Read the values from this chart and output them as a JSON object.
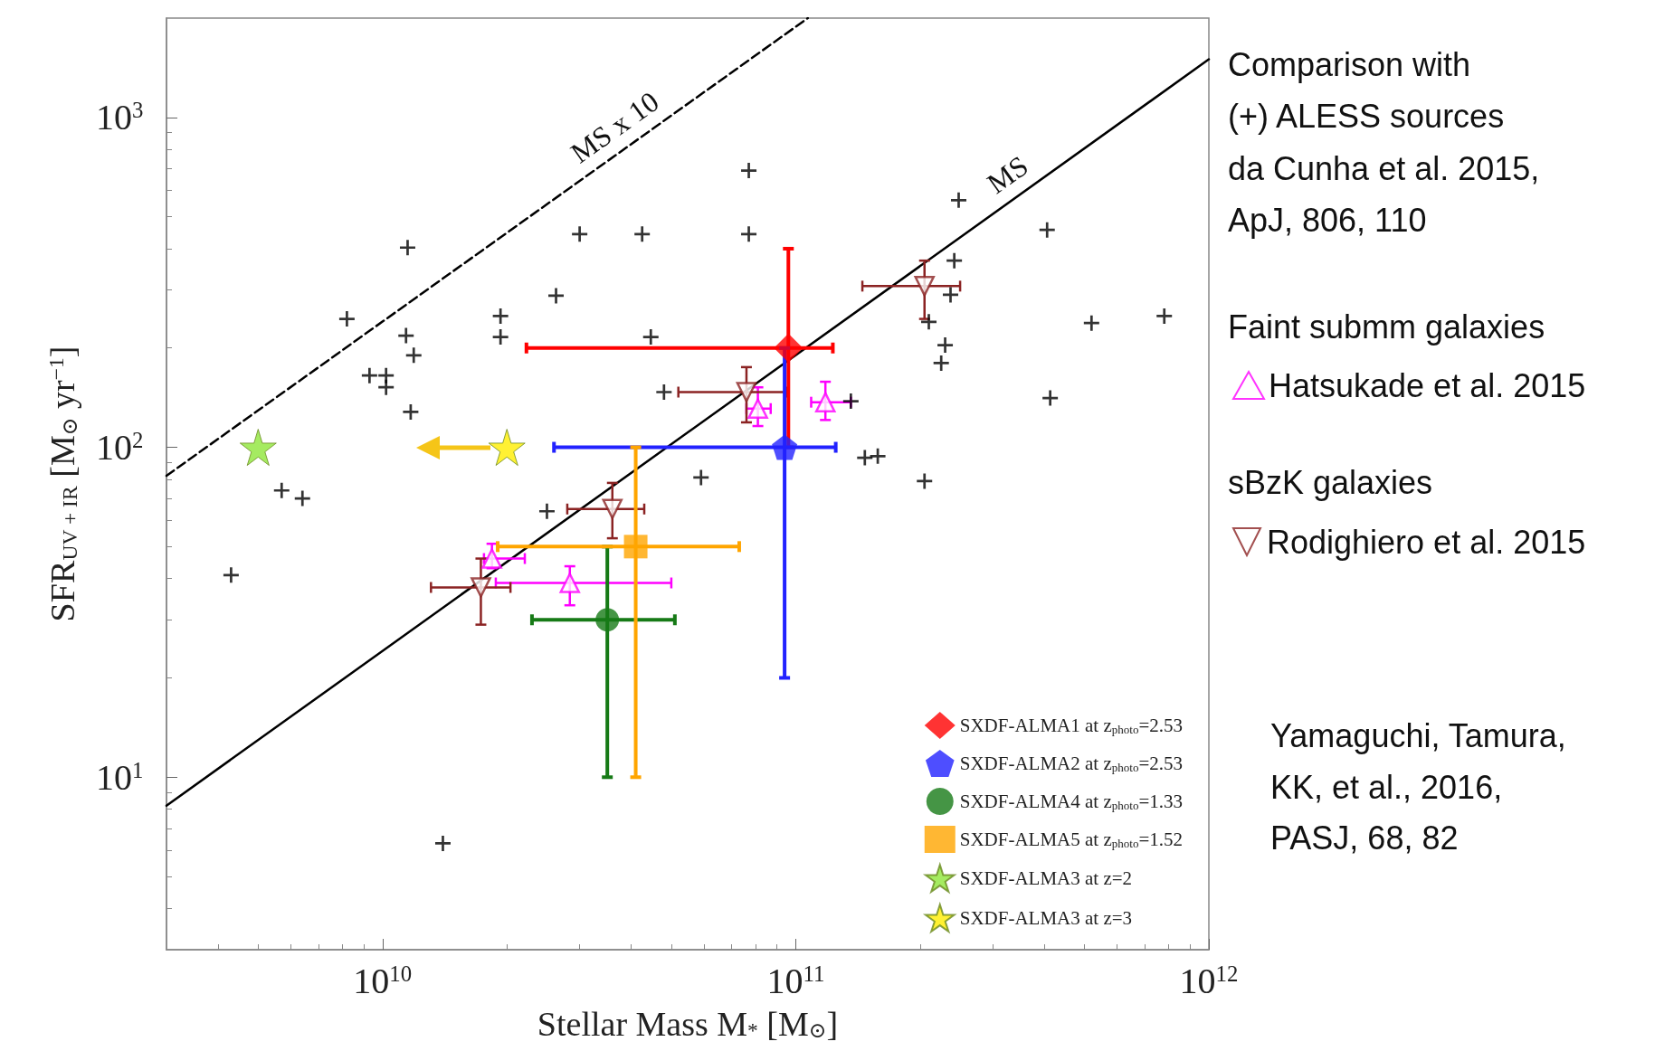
{
  "chart_data": {
    "type": "scatter",
    "xlabel": "Stellar Mass M$_{*}$ [M$_{⊙}$]",
    "ylabel": "SFR$_{UV + IR}$ [M$_{⊙}$ yr$^{−1}$]",
    "log": "xy",
    "grid": false,
    "legend": "bottom right",
    "xlim": [
      3000000000.0,
      1000000000000.0
    ],
    "ylim": [
      3,
      2000
    ],
    "xticks": [
      {
        "value": 10000000000.0,
        "label": "10$^{10}$"
      },
      {
        "value": 100000000000.0,
        "label": "10$^{11}$"
      },
      {
        "value": 1000000000000.0,
        "label": "10$^{12}$"
      }
    ],
    "yticks": [
      {
        "value": 10,
        "label": "10$^{1}$"
      },
      {
        "value": 100,
        "label": "10$^{2}$"
      },
      {
        "value": 1000,
        "label": "10$^{3}$"
      }
    ],
    "series": [
      {
        "type": "line",
        "color": "#000000",
        "marker": "none",
        "line_style": "solid",
        "x": [
          3000000000.0,
          1000000000000.0
        ],
        "values": [
          8.2,
          1500
        ]
      },
      {
        "type": "line",
        "color": "#000000",
        "marker": "none",
        "line_style": "dashed",
        "x": [
          3000000000.0,
          107000000000.0
        ],
        "values": [
          82,
          2000
        ]
      },
      {
        "color": "#000000",
        "marker": "cross",
        "x": [
          4300000000.0,
          5700000000.0,
          6400000000.0,
          8200000000.0,
          9300000000.0,
          10200000000.0,
          10200000000.0,
          11500000000.0,
          11400000000.0,
          11900000000.0,
          11700000000.0,
          14000000000.0,
          19300000000.0,
          19300000000.0,
          30000000000.0,
          26300000000.0,
          42500000000.0,
          44600000000.0,
          48000000000.0,
          25000000000.0,
          59000000000.0,
          77000000000.0,
          77000000000.0,
          136000000000.0,
          147000000000.0,
          158000000000.0,
          205000000000.0,
          210000000000.0,
          225000000000.0,
          230000000000.0,
          237000000000.0,
          242000000000.0,
          248000000000.0,
          406000000000.0,
          413000000000.0,
          520000000000.0,
          780000000000.0
        ],
        "values": [
          41,
          74,
          70,
          245,
          165,
          165,
          152,
          403,
          218,
          190,
          128,
          6.3,
          250,
          216,
          443,
          288,
          443,
          216,
          147,
          64,
          81,
          690,
          443,
          138,
          93,
          94,
          79,
          240,
          180,
          204,
          290,
          368,
          561,
          456,
          141,
          238,
          250
        ]
      },
      {
        "name": "Hatsukade et al. 2015",
        "color": "#ff00ff",
        "marker": "triangle",
        "x": [
          81000000000.0,
          118000000000.0,
          18400000000.0,
          28400000000.0
        ],
        "values": [
          131,
          137,
          46,
          38.8
        ],
        "errors": [
          [
            116,
            152
          ],
          [
            121,
            158
          ],
          [
            43,
            51
          ],
          [
            33.2,
            43.6
          ]
        ],
        "xerrors": [
          [
            76000000000.0,
            87000000000.0
          ],
          [
            109000000000.0,
            136000000000.0
          ],
          [
            17600000000.0,
            22100000000.0
          ],
          [
            18800000000.0,
            50000000000.0
          ]
        ]
      },
      {
        "name": "Rodighiero et al. 2015",
        "color": "#8b2323",
        "marker": "triangle_down",
        "x": [
          76000000000.0,
          205000000000.0,
          36000000000.0,
          17300000000.0
        ],
        "values": [
          147,
          308,
          65,
          37.6
        ],
        "errors": [
          [
            119,
            175
          ],
          [
            245,
            368
          ],
          [
            53,
            78
          ],
          [
            29,
            46
          ]
        ],
        "xerrors": [
          [
            52000000000.0,
            95000000000.0
          ],
          [
            145000000000.0,
            250000000000.0
          ],
          [
            28000000000.0,
            43000000000.0
          ],
          [
            13100000000.0,
            20400000000.0
          ]
        ]
      },
      {
        "name": "SXDF-ALMA1 at z$_{photo}$=2.53",
        "color": "#ff0000",
        "marker": "diamond",
        "x": [
          96000000000.0
        ],
        "values": [
          200
        ],
        "errors": [
          [
            100,
            400
          ]
        ],
        "xerrors": [
          [
            22300000000.0,
            123000000000.0
          ]
        ]
      },
      {
        "name": "SXDF-ALMA2 at z$_{photo}$=2.53",
        "color": "#2222ff",
        "x": [
          94000000000.0
        ],
        "values": [
          100
        ],
        "errors": [
          [
            20,
            200
          ]
        ],
        "xerrors": [
          [
            26000000000.0,
            125000000000.0
          ]
        ]
      },
      {
        "name": "SXDF-ALMA4 at z$_{photo}$=1.33",
        "color": "#167a16",
        "marker": "circle",
        "x": [
          35000000000.0
        ],
        "values": [
          30
        ],
        "errors": [
          [
            10,
            50
          ]
        ],
        "xerrors": [
          [
            23000000000.0,
            51000000000.0
          ]
        ]
      },
      {
        "name": "SXDF-ALMA5 at z$_{photo}$=1.52",
        "color": "#ffa500",
        "marker": "square",
        "x": [
          41000000000.0
        ],
        "values": [
          50
        ],
        "errors": [
          [
            10,
            100
          ]
        ],
        "xerrors": [
          [
            19000000000.0,
            73000000000.0
          ]
        ]
      },
      {
        "name": "SXDF-ALMA3 at z=2",
        "color": "#8fe63a",
        "marker": "star",
        "x": [
          5000000000.0
        ],
        "values": [
          100
        ]
      },
      {
        "name": "SXDF-ALMA3 at z=3",
        "color": "#ffee00",
        "marker": "star",
        "x": [
          20000000000.0
        ],
        "values": [
          100
        ]
      }
    ],
    "annotations": [
      "MS x 10",
      "MS",
      "Comparison with",
      "(+) ALESS sources",
      "da Cunha et al. 2015,",
      "ApJ, 806, 110",
      "Faint submm galaxies",
      "sBzK galaxies",
      "Yamaguchi, Tamura,",
      "KK, et al., 2016,",
      "PASJ, 68, 82"
    ]
  }
}
